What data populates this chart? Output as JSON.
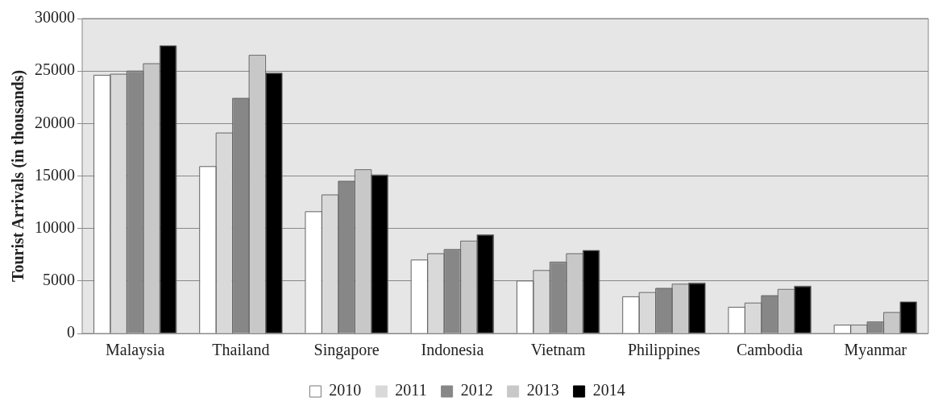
{
  "chart_data": {
    "type": "bar",
    "ylabel": "Tourist Arrivals (in thousands)",
    "categories": [
      "Malaysia",
      "Thailand",
      "Singapore",
      "Indonesia",
      "Vietnam",
      "Philippines",
      "Cambodia",
      "Myanmar"
    ],
    "series": [
      {
        "name": "2010",
        "color": "#ffffff",
        "values": [
          24600,
          15900,
          11600,
          7000,
          5000,
          3500,
          2500,
          800
        ]
      },
      {
        "name": "2011",
        "color": "#d9d9d9",
        "values": [
          24700,
          19100,
          13200,
          7600,
          6000,
          3900,
          2900,
          800
        ]
      },
      {
        "name": "2012",
        "color": "#878787",
        "values": [
          25000,
          22400,
          14500,
          8000,
          6800,
          4300,
          3600,
          1100
        ]
      },
      {
        "name": "2013",
        "color": "#c8c8c8",
        "values": [
          25700,
          26500,
          15600,
          8800,
          7600,
          4700,
          4200,
          2000
        ]
      },
      {
        "name": "2014",
        "color": "#000000",
        "values": [
          27400,
          24800,
          15100,
          9400,
          7900,
          4800,
          4500,
          3000
        ]
      }
    ],
    "ylim": [
      0,
      30000
    ],
    "yticks": [
      0,
      5000,
      10000,
      15000,
      20000,
      25000,
      30000
    ],
    "grid": "y",
    "legend": "bottom"
  }
}
